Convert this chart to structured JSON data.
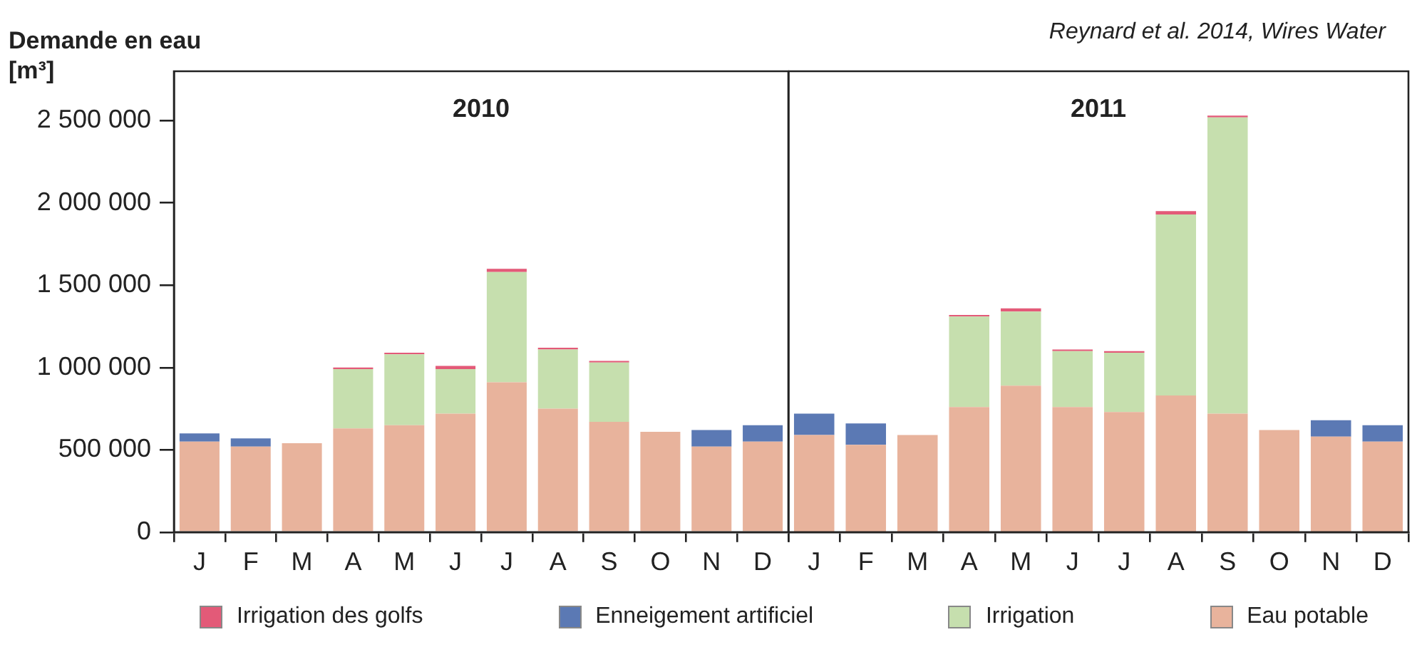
{
  "chart_data": [
    {
      "type": "bar",
      "title": "2010",
      "ylabel": "Demande en eau [m³]",
      "stacked": true,
      "legend": "bottom",
      "grid": false,
      "categories": [
        "J",
        "F",
        "M",
        "A",
        "M",
        "J",
        "J",
        "A",
        "S",
        "O",
        "N",
        "D"
      ],
      "ylim": [
        0,
        2800000
      ],
      "yticks": [
        0,
        {
          "value": 500000,
          "label": "500 000"
        },
        {
          "value": 1000000,
          "label": "1 000 000"
        },
        {
          "value": 1500000,
          "label": "1 500 000"
        },
        {
          "value": 2000000,
          "label": "2 000 000"
        },
        {
          "value": 2500000,
          "label": "2 500 000"
        }
      ],
      "annotations": [
        "Reynard et al. 2014, Wires Water"
      ],
      "series": [
        {
          "name": "Eau potable",
          "color": "#e8b39c",
          "values": [
            550000,
            520000,
            540000,
            630000,
            650000,
            720000,
            910000,
            750000,
            670000,
            610000,
            520000,
            550000
          ]
        },
        {
          "name": "Irrigation",
          "color": "#c6dfae",
          "values": [
            null,
            null,
            null,
            360000,
            430000,
            270000,
            670000,
            360000,
            360000,
            null,
            null,
            null
          ]
        },
        {
          "name": "Enneigement artificiel",
          "color": "#5b79b4",
          "values": [
            50000,
            50000,
            null,
            null,
            null,
            null,
            null,
            null,
            null,
            null,
            100000,
            100000
          ]
        },
        {
          "name": "Irrigation des golfs",
          "color": "#e35a78",
          "values": [
            null,
            null,
            null,
            10000,
            10000,
            20000,
            20000,
            10000,
            10000,
            null,
            null,
            null
          ]
        }
      ]
    },
    {
      "type": "bar",
      "title": "2011",
      "stacked": true,
      "grid": false,
      "tick_labels": "x",
      "categories": [
        "J",
        "F",
        "M",
        "A",
        "M",
        "J",
        "J",
        "A",
        "S",
        "O",
        "N",
        "D"
      ],
      "ylim": [
        0,
        2800000
      ],
      "series": [
        {
          "color": "#e8b39c",
          "values": [
            590000,
            530000,
            590000,
            760000,
            890000,
            760000,
            730000,
            830000,
            720000,
            620000,
            580000,
            550000
          ]
        },
        {
          "color": "#c6dfae",
          "values": [
            null,
            null,
            null,
            550000,
            450000,
            340000,
            360000,
            1100000,
            1800000,
            null,
            null,
            null
          ]
        },
        {
          "color": "#5b79b4",
          "values": [
            130000,
            130000,
            null,
            null,
            null,
            null,
            null,
            null,
            null,
            null,
            100000,
            100000
          ]
        },
        {
          "color": "#e35a78",
          "values": [
            null,
            null,
            null,
            10000,
            20000,
            10000,
            10000,
            20000,
            10000,
            null,
            null,
            null
          ]
        }
      ]
    }
  ]
}
